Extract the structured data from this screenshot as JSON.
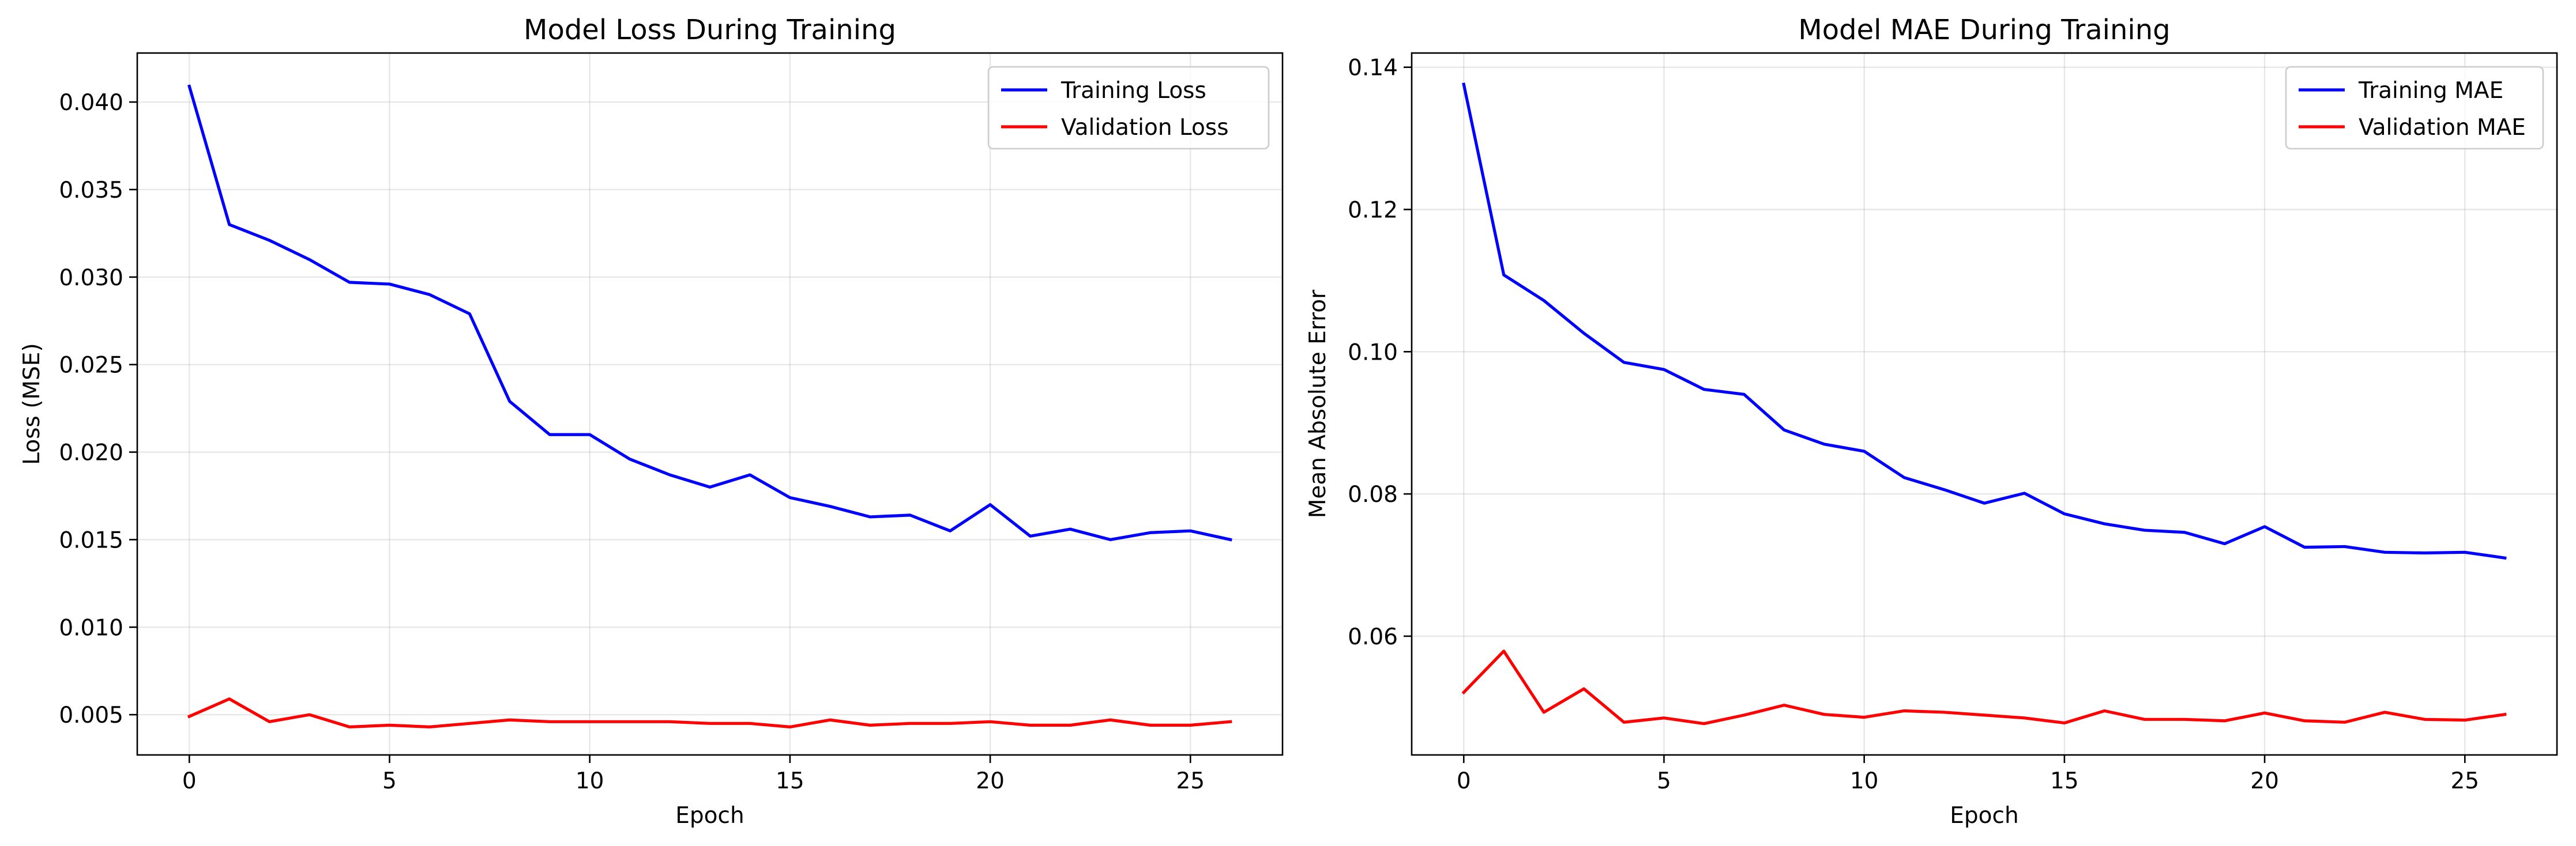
{
  "chart_data": [
    {
      "type": "line",
      "title": "Model Loss During Training",
      "xlabel": "Epoch",
      "ylabel": "Loss (MSE)",
      "xlim": [
        -1.3,
        27.3
      ],
      "ylim": [
        0.0027,
        0.0428
      ],
      "xticks": [
        0,
        5,
        10,
        15,
        20,
        25
      ],
      "xtick_labels": [
        "0",
        "5",
        "10",
        "15",
        "20",
        "25"
      ],
      "yticks": [
        0.005,
        0.01,
        0.015,
        0.02,
        0.025,
        0.03,
        0.035,
        0.04
      ],
      "ytick_labels": [
        "0.005",
        "0.010",
        "0.015",
        "0.020",
        "0.025",
        "0.030",
        "0.035",
        "0.040"
      ],
      "grid": true,
      "legend_position": "top-right",
      "x": [
        0,
        1,
        2,
        3,
        4,
        5,
        6,
        7,
        8,
        9,
        10,
        11,
        12,
        13,
        14,
        15,
        16,
        17,
        18,
        19,
        20,
        21,
        22,
        23,
        24,
        25,
        26
      ],
      "series": [
        {
          "name": "Training Loss",
          "color": "#0000ff",
          "values": [
            0.0409,
            0.033,
            0.0321,
            0.031,
            0.0297,
            0.0296,
            0.029,
            0.0279,
            0.0229,
            0.021,
            0.021,
            0.0196,
            0.0187,
            0.018,
            0.0187,
            0.0174,
            0.0169,
            0.0163,
            0.0164,
            0.0155,
            0.017,
            0.0152,
            0.0156,
            0.015,
            0.0154,
            0.0155,
            0.015
          ]
        },
        {
          "name": "Validation Loss",
          "color": "#ff0000",
          "values": [
            0.0049,
            0.0059,
            0.0046,
            0.005,
            0.0043,
            0.0044,
            0.0043,
            0.0045,
            0.0047,
            0.0046,
            0.0046,
            0.0046,
            0.0046,
            0.0045,
            0.0045,
            0.0043,
            0.0047,
            0.0044,
            0.0045,
            0.0045,
            0.0046,
            0.0044,
            0.0044,
            0.0047,
            0.0044,
            0.0044,
            0.0046
          ]
        }
      ]
    },
    {
      "type": "line",
      "title": "Model MAE During Training",
      "xlabel": "Epoch",
      "ylabel": "Mean Absolute Error",
      "xlim": [
        -1.3,
        27.3
      ],
      "ylim": [
        0.0433,
        0.142
      ],
      "xticks": [
        0,
        5,
        10,
        15,
        20,
        25
      ],
      "xtick_labels": [
        "0",
        "5",
        "10",
        "15",
        "20",
        "25"
      ],
      "yticks": [
        0.06,
        0.08,
        0.1,
        0.12,
        0.14
      ],
      "ytick_labels": [
        "0.06",
        "0.08",
        "0.10",
        "0.12",
        "0.14"
      ],
      "grid": true,
      "legend_position": "top-right",
      "x": [
        0,
        1,
        2,
        3,
        4,
        5,
        6,
        7,
        8,
        9,
        10,
        11,
        12,
        13,
        14,
        15,
        16,
        17,
        18,
        19,
        20,
        21,
        22,
        23,
        24,
        25,
        26
      ],
      "series": [
        {
          "name": "Training MAE",
          "color": "#0000ff",
          "values": [
            0.1376,
            0.1108,
            0.1072,
            0.1026,
            0.0985,
            0.0975,
            0.0947,
            0.094,
            0.089,
            0.087,
            0.086,
            0.0823,
            0.0806,
            0.0787,
            0.0801,
            0.0772,
            0.0758,
            0.0749,
            0.0746,
            0.073,
            0.0754,
            0.0725,
            0.0726,
            0.0718,
            0.0717,
            0.0718,
            0.071
          ]
        },
        {
          "name": "Validation MAE",
          "color": "#ff0000",
          "values": [
            0.0521,
            0.0579,
            0.0493,
            0.0526,
            0.0479,
            0.0485,
            0.0477,
            0.0489,
            0.0503,
            0.049,
            0.0486,
            0.0495,
            0.0493,
            0.0489,
            0.0485,
            0.0478,
            0.0495,
            0.0483,
            0.0483,
            0.0481,
            0.0492,
            0.0481,
            0.0479,
            0.0493,
            0.0483,
            0.0482,
            0.049
          ]
        }
      ]
    }
  ]
}
